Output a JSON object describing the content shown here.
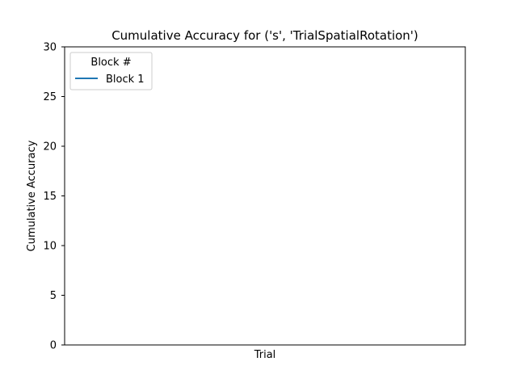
{
  "chart_data": {
    "type": "line",
    "title": "Cumulative Accuracy for ('s', 'TrialSpatialRotation')",
    "xlabel": "Trial",
    "ylabel": "Cumulative Accuracy",
    "ylim": [
      0,
      30
    ],
    "yticks": [
      "0",
      "5",
      "10",
      "15",
      "20",
      "25",
      "30"
    ],
    "xticks": [],
    "grid": false,
    "legend": {
      "title": "Block #",
      "placement": "top-left"
    },
    "series": [
      {
        "name": "Block 1",
        "color": "#1f77b4",
        "values": []
      }
    ]
  }
}
